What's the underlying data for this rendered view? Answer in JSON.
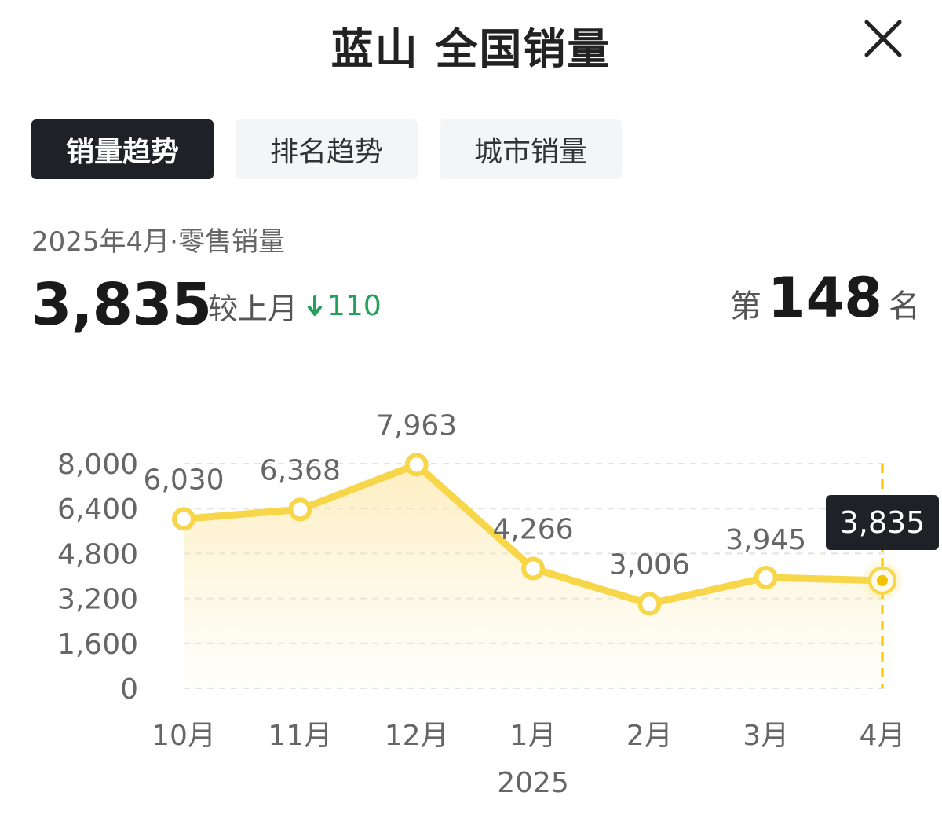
{
  "header": {
    "title": "蓝山 全国销量"
  },
  "tabs": [
    {
      "label": "销量趋势",
      "active": true
    },
    {
      "label": "排名趋势",
      "active": false
    },
    {
      "label": "城市销量",
      "active": false
    }
  ],
  "summary": {
    "period": "2025年4月·零售销量",
    "value": "3,835",
    "compare_label": "较上月",
    "delta": "110",
    "delta_direction": "down",
    "rank_prefix": "第",
    "rank": "148",
    "rank_suffix": "名"
  },
  "colors": {
    "line": "#f7d64a",
    "marker_fill": "#ffffff",
    "highlight_marker": "#f2c200",
    "delta_down": "#23a05a",
    "tooltip_bg": "#1e2126"
  },
  "chart_data": {
    "type": "line",
    "categories": [
      "10月",
      "11月",
      "12月",
      "1月",
      "2月",
      "3月",
      "4月"
    ],
    "year_label": "2025",
    "series": [
      {
        "values": [
          6030,
          6368,
          7963,
          4266,
          3006,
          3945,
          3835
        ]
      }
    ],
    "data_labels": [
      "6,030",
      "6,368",
      "7,963",
      "4,266",
      "3,006",
      "3,945",
      "3,835"
    ],
    "yticks": [
      0,
      1600,
      3200,
      4800,
      6400,
      8000
    ],
    "ytick_labels": [
      "0",
      "1,600",
      "3,200",
      "4,800",
      "6,400",
      "8,000"
    ],
    "ylim": [
      0,
      8000
    ],
    "grid": true,
    "highlight_index": 6,
    "fill_area": true
  }
}
